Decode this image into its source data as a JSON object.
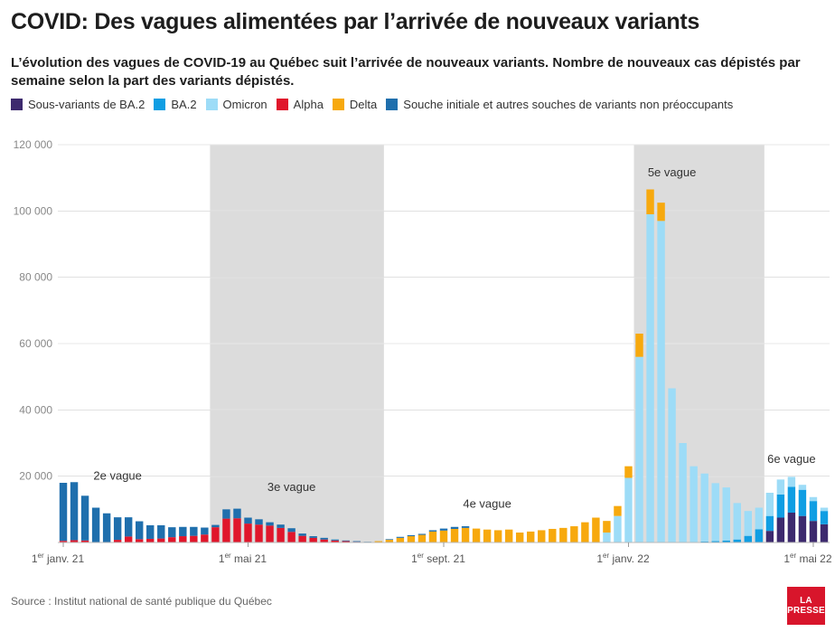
{
  "title": "COVID: Des vagues alimentées par l’arrivée de nouveaux variants",
  "subtitle": "L’évolution des vagues de COVID-19 au Québec suit l’arrivée de nouveaux variants. Nombre de nouveaux cas dépistés par semaine selon la part des variants dépistés.",
  "source": "Source : Institut national de santé publique du Québec",
  "logo": {
    "line1": "LA",
    "line2": "PRESSE",
    "color": "#d8152b"
  },
  "chart_data": {
    "type": "bar",
    "stacked": true,
    "ylim": [
      0,
      120000
    ],
    "yticks": [
      {
        "value": 20000,
        "label": "20 000"
      },
      {
        "value": 40000,
        "label": "40 000"
      },
      {
        "value": 60000,
        "label": "60 000"
      },
      {
        "value": 80000,
        "label": "80 000"
      },
      {
        "value": 100000,
        "label": "100 000"
      },
      {
        "value": 120000,
        "label": "120 000"
      }
    ],
    "xticks": [
      {
        "index": 0,
        "sup": "er",
        "pre": "1",
        "label": "janv. 21"
      },
      {
        "index": 17,
        "sup": "er",
        "pre": "1",
        "label": "mai 21"
      },
      {
        "index": 35,
        "sup": "er",
        "pre": "1",
        "label": "sept. 21"
      },
      {
        "index": 52,
        "sup": "er",
        "pre": "1",
        "label": "janv. 22"
      },
      {
        "index": 69,
        "sup": "er",
        "pre": "1",
        "label": "mai 22"
      }
    ],
    "shaded_ranges": [
      [
        13.5,
        29.5
      ],
      [
        52.5,
        64.5
      ]
    ],
    "waves": [
      {
        "label": "2e vague",
        "index": 5,
        "y": 19000
      },
      {
        "label": "3e vague",
        "index": 21,
        "y": 15500
      },
      {
        "label": "4e vague",
        "index": 39,
        "y": 10500
      },
      {
        "label": "5e vague",
        "index": 56,
        "y": 110500
      },
      {
        "label": "6e vague",
        "index": 67,
        "y": 24000
      }
    ],
    "series": [
      {
        "name": "Sous-variants de BA.2",
        "color": "#3d2a6e",
        "values": [
          0,
          0,
          0,
          0,
          0,
          0,
          0,
          0,
          0,
          0,
          0,
          0,
          0,
          0,
          0,
          0,
          0,
          0,
          0,
          0,
          0,
          0,
          0,
          0,
          0,
          0,
          0,
          0,
          0,
          0,
          0,
          0,
          0,
          0,
          0,
          0,
          0,
          0,
          0,
          0,
          0,
          0,
          0,
          0,
          0,
          0,
          0,
          0,
          0,
          0,
          0,
          0,
          0,
          0,
          0,
          0,
          0,
          0,
          0,
          0,
          0,
          0,
          0,
          0,
          0,
          3500,
          7500,
          9000,
          8000,
          6500,
          5500
        ]
      },
      {
        "name": "BA.2",
        "color": "#109ee3",
        "values": [
          0,
          0,
          0,
          0,
          0,
          0,
          0,
          0,
          0,
          0,
          0,
          0,
          0,
          0,
          0,
          0,
          0,
          0,
          0,
          0,
          0,
          0,
          0,
          0,
          0,
          0,
          0,
          0,
          0,
          0,
          0,
          0,
          0,
          0,
          0,
          0,
          0,
          0,
          0,
          0,
          0,
          0,
          0,
          0,
          0,
          0,
          0,
          0,
          0,
          0,
          0,
          0,
          0,
          0,
          0,
          0,
          0,
          0,
          0,
          300,
          400,
          600,
          900,
          2000,
          4000,
          4500,
          7000,
          7800,
          7900,
          6000,
          4000
        ]
      },
      {
        "name": "Omicron",
        "color": "#9ddcf7",
        "values": [
          0,
          0,
          0,
          0,
          0,
          0,
          0,
          0,
          0,
          0,
          0,
          0,
          0,
          0,
          0,
          0,
          0,
          0,
          0,
          0,
          0,
          0,
          0,
          0,
          0,
          0,
          0,
          0,
          0,
          0,
          0,
          0,
          0,
          0,
          0,
          0,
          0,
          0,
          0,
          0,
          0,
          0,
          0,
          0,
          0,
          0,
          0,
          0,
          0,
          0,
          3000,
          8000,
          19500,
          56000,
          99000,
          97000,
          46500,
          30000,
          23000,
          20500,
          17500,
          16000,
          11000,
          7500,
          6500,
          7000,
          4500,
          3000,
          1500,
          1200,
          1000
        ]
      },
      {
        "name": "Alpha",
        "color": "#e0162b",
        "values": [
          500,
          700,
          600,
          0,
          0,
          800,
          1800,
          1000,
          1100,
          1200,
          1600,
          1900,
          2000,
          2400,
          4600,
          7200,
          7300,
          5700,
          5400,
          5100,
          4400,
          3200,
          2000,
          1400,
          900,
          600,
          400,
          200,
          0,
          0,
          0,
          0,
          0,
          0,
          0,
          0,
          0,
          0,
          0,
          0,
          0,
          0,
          0,
          0,
          0,
          0,
          0,
          0,
          0,
          0,
          0,
          0,
          0,
          0,
          0,
          0,
          0,
          0,
          0,
          0,
          0,
          0,
          0,
          0,
          0,
          0,
          0,
          0,
          0,
          0,
          0
        ]
      },
      {
        "name": "Delta",
        "color": "#f7a90e",
        "values": [
          0,
          0,
          0,
          0,
          0,
          0,
          0,
          0,
          0,
          0,
          0,
          0,
          0,
          0,
          0,
          0,
          0,
          0,
          0,
          0,
          0,
          0,
          0,
          0,
          0,
          0,
          0,
          0,
          100,
          400,
          800,
          1400,
          1900,
          2300,
          3300,
          3600,
          4100,
          4400,
          4200,
          3900,
          3700,
          3900,
          3000,
          3300,
          3700,
          4100,
          4400,
          4900,
          6100,
          7500,
          3500,
          3000,
          3500,
          7000,
          7500,
          5500,
          0,
          0,
          0,
          0,
          0,
          0,
          0,
          0,
          0,
          0,
          0,
          0,
          0,
          0,
          0
        ]
      },
      {
        "name": "Souche initiale et autres souches de variants non préoccupants",
        "color": "#1f6fad",
        "values": [
          17500,
          17500,
          13500,
          10500,
          8800,
          6800,
          5800,
          5400,
          4100,
          4000,
          3000,
          2800,
          2700,
          2100,
          700,
          2800,
          2900,
          1800,
          1600,
          1000,
          1000,
          1100,
          700,
          500,
          500,
          300,
          200,
          200,
          100,
          0,
          200,
          300,
          300,
          300,
          400,
          600,
          600,
          500,
          0,
          0,
          0,
          0,
          0,
          0,
          0,
          0,
          0,
          0,
          0,
          0,
          0,
          0,
          0,
          0,
          0,
          0,
          0,
          0,
          0,
          0,
          0,
          0,
          0,
          0,
          0,
          0,
          0,
          0,
          0,
          0,
          0
        ]
      }
    ]
  }
}
